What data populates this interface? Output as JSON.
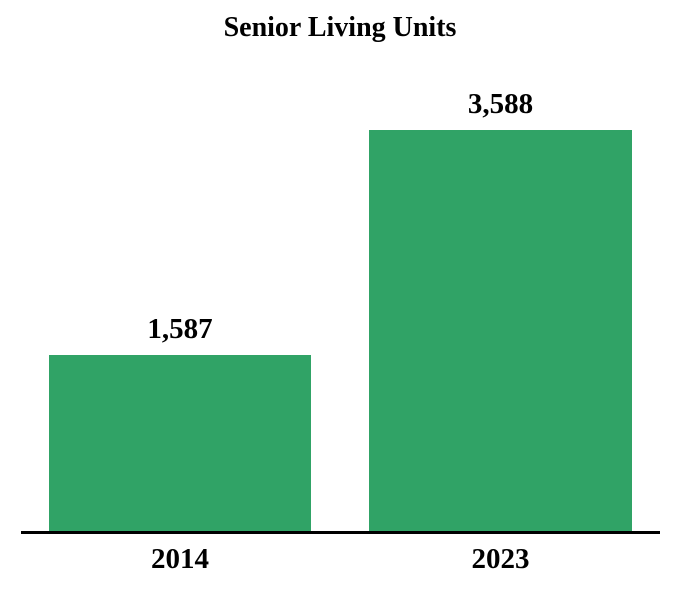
{
  "page": {
    "background_color": "#FFFFFF",
    "text_color": "#000000"
  },
  "chart_data": {
    "type": "bar",
    "title": "Senior Living Units",
    "categories": [
      "2014",
      "2023"
    ],
    "values": [
      1587,
      3588
    ],
    "value_labels": [
      "1,587",
      "3,588"
    ],
    "xlabel": "",
    "ylabel": "",
    "ylim": [
      0,
      3588
    ],
    "grid": false,
    "legend": false,
    "bar_color": "#30A366",
    "axis_line_color": "#000000",
    "label_color": "#000000"
  }
}
